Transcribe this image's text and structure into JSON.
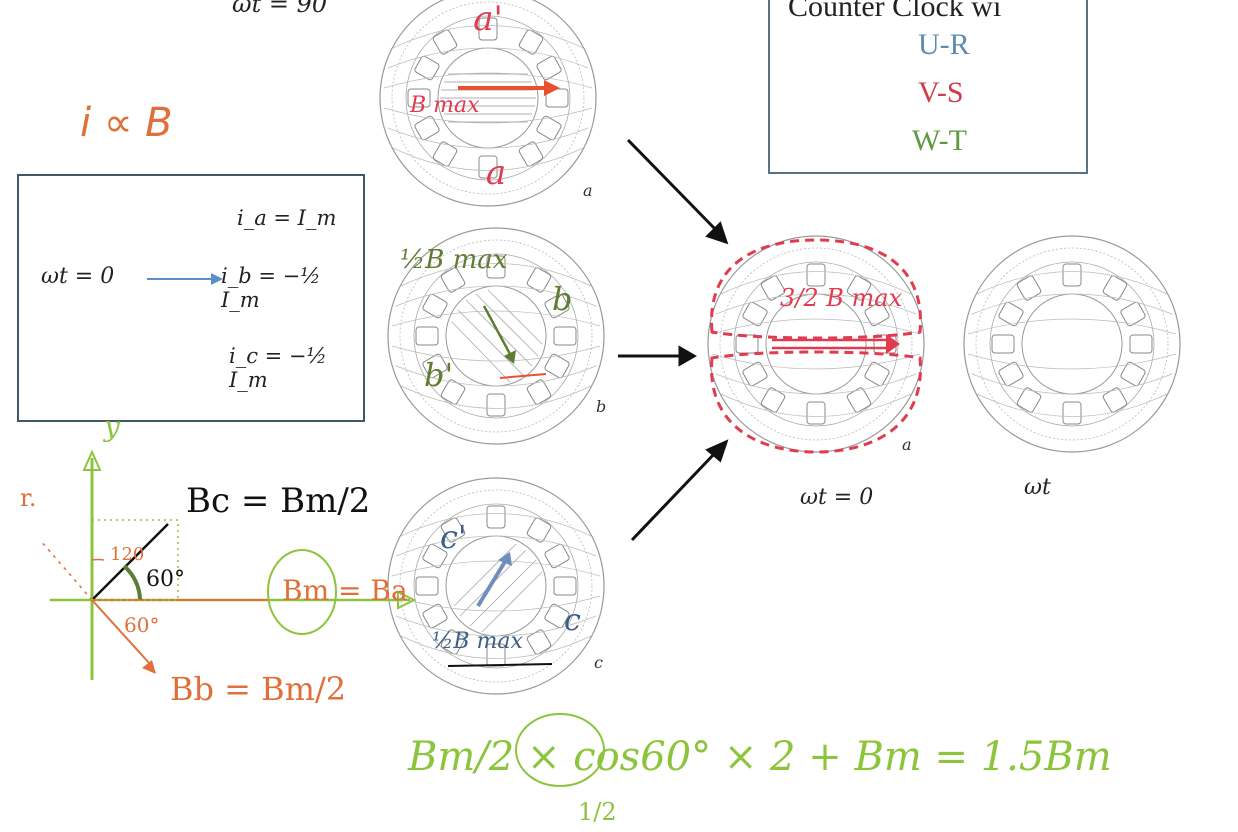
{
  "top_label": "ωt = 90",
  "legend": {
    "title": "Counter Clock wi",
    "items": [
      {
        "label": "U-R",
        "color": "#5b8db0"
      },
      {
        "label": "V-S",
        "color": "#d23a4a"
      },
      {
        "label": "W-T",
        "color": "#5e9a3e"
      }
    ]
  },
  "handwritten_relation": "i ∝ B",
  "equations_box": {
    "wt": "ωt = 0",
    "ia": "i_a = I_m",
    "ib": "i_b = −½ I_m",
    "ic": "i_c = −½ I_m"
  },
  "motors": {
    "a": {
      "caption": "a",
      "top_label": "a'",
      "bottom_label": "a",
      "field": "B max"
    },
    "b": {
      "caption": "b",
      "label1": "b",
      "label2": "b'",
      "field": "½B max"
    },
    "c": {
      "caption": "c",
      "label1": "c'",
      "label2": "c",
      "field": "½B max"
    },
    "result": {
      "caption": "a",
      "field": "3/2 B max",
      "wt_label": "ωt = 0"
    },
    "partial_wt_label": "ωt"
  },
  "phasor": {
    "axis_y": "y",
    "bc_label": "Bc = Bm/2",
    "ba_label": "Bm = Ba",
    "bb_label": "Bb = Bm/2",
    "angle_120": "120",
    "angle_60a": "60°",
    "angle_60b": "60°"
  },
  "bottom_equation": "Bm/2 × cos60° × 2 + Bm = 1.5Bm",
  "bottom_fraction": "1/2",
  "colors": {
    "red": "#e23b4f",
    "green": "#8cc43c",
    "orange": "#e0703a",
    "blue": "#3b5f86",
    "olive": "#5e7d32",
    "arrow_blue": "#5b8fc6"
  }
}
